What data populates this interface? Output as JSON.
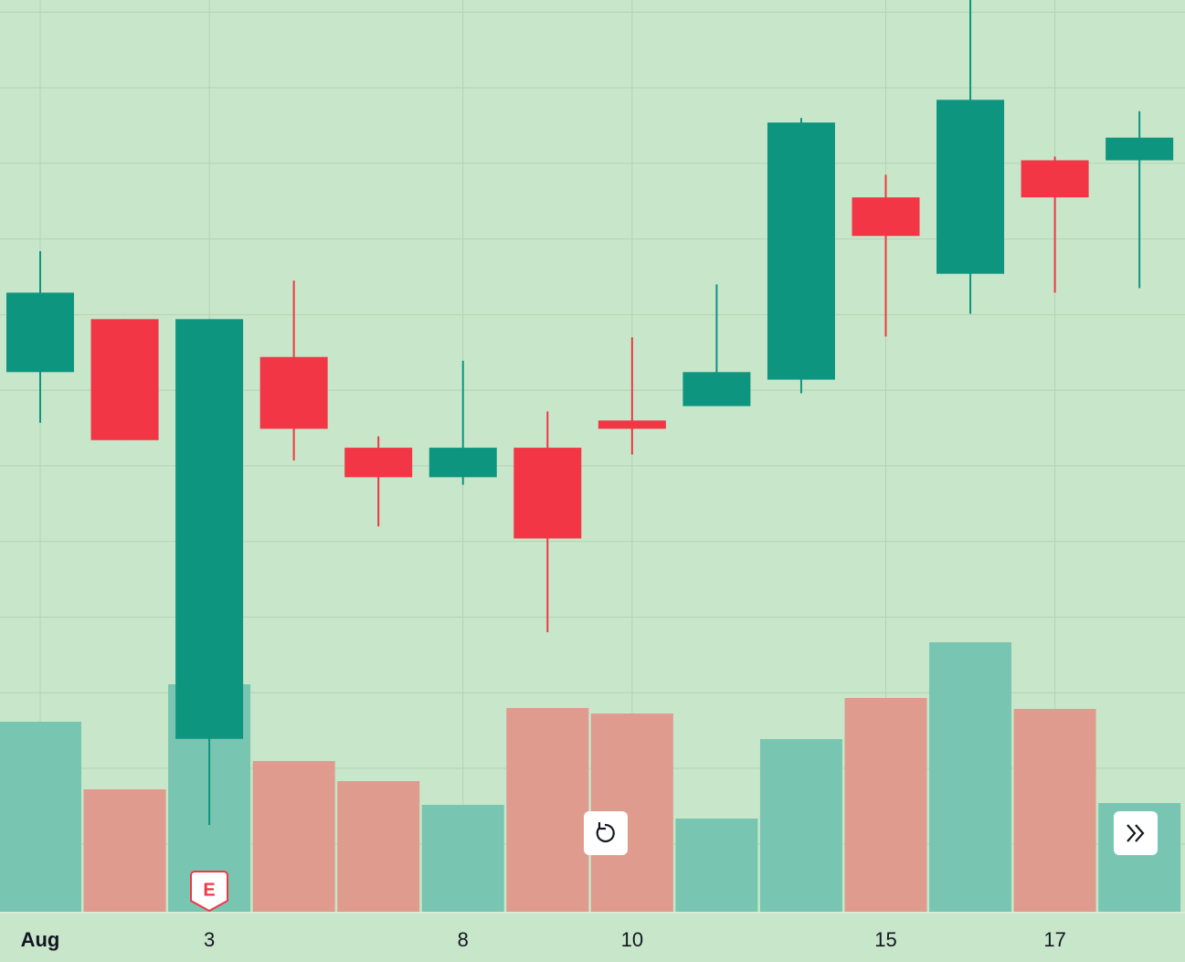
{
  "chart_data": {
    "type": "candlestick",
    "categories": [
      "Aug",
      null,
      "3",
      null,
      null,
      "8",
      null,
      "10",
      null,
      null,
      "15",
      null,
      "17",
      null
    ],
    "open": [
      72.4,
      79.4,
      23.9,
      74.4,
      62.4,
      58.5,
      62.4,
      66.0,
      67.9,
      71.4,
      95.5,
      85.4,
      100.4,
      100.4
    ],
    "high": [
      88.4,
      79.4,
      79.4,
      84.5,
      63.9,
      73.9,
      67.2,
      77.0,
      84.0,
      106.0,
      98.5,
      121.6,
      100.9,
      106.9
    ],
    "low": [
      65.7,
      63.4,
      12.5,
      60.7,
      52.0,
      57.5,
      38.0,
      61.5,
      67.9,
      69.6,
      77.1,
      80.1,
      82.9,
      83.5
    ],
    "close": [
      82.9,
      63.4,
      79.4,
      64.9,
      58.5,
      62.4,
      50.4,
      64.9,
      72.4,
      105.4,
      90.4,
      108.4,
      95.5,
      103.4
    ],
    "volume": [
      208,
      134,
      249,
      165,
      143,
      117,
      223,
      217,
      102,
      189,
      234,
      295,
      222,
      119
    ],
    "up_color": "#0e9580",
    "down_color": "#f23645",
    "volume_up_color": "#78c6b2",
    "volume_down_color": "#de9b8e",
    "ylim": [
      0.8,
      121.6
    ],
    "yticks": [
      10,
      20,
      30,
      40,
      50,
      60,
      70,
      80,
      90,
      100,
      110,
      120
    ],
    "volume_lim": [
      0,
      998
    ],
    "grid": true,
    "earnings_marker": "E"
  }
}
